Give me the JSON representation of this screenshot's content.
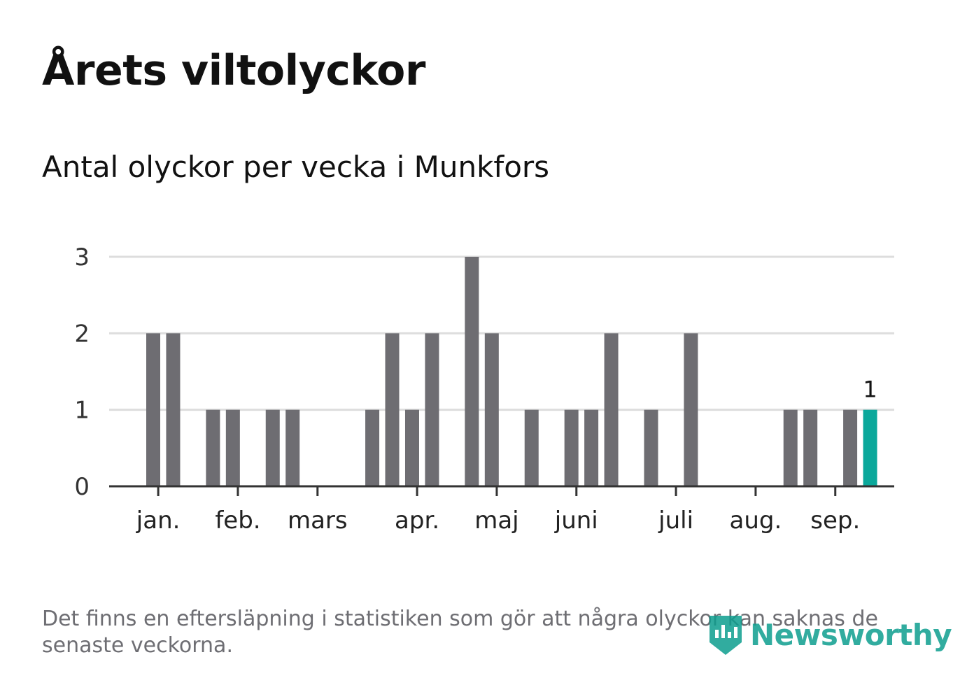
{
  "title": "Årets viltolyckor",
  "subtitle": "Antal olyckor per vecka i Munkfors",
  "footnote": "Det finns en eftersläpning i statistiken som gör att några olyckor kan saknas de senaste veckorna.",
  "brand": {
    "name": "Newsworthy",
    "icon": "newsworthy-logo-icon",
    "color": "#0e9e8f"
  },
  "colors": {
    "bar": "#6e6d72",
    "highlight": "#0ba89b",
    "grid": "#dddddd",
    "axis": "#333333"
  },
  "chart_data": {
    "type": "bar",
    "x_unit": "week",
    "weeks": [
      1,
      2,
      3,
      4,
      5,
      6,
      7,
      8,
      9,
      10,
      11,
      12,
      13,
      14,
      15,
      16,
      17,
      18,
      19,
      20,
      21,
      22,
      23,
      24,
      25,
      26,
      27,
      28,
      29,
      30,
      31,
      32,
      33,
      34,
      35,
      36,
      37,
      38,
      39
    ],
    "values": [
      0,
      0,
      2,
      2,
      0,
      1,
      1,
      0,
      1,
      1,
      0,
      0,
      0,
      1,
      2,
      1,
      2,
      0,
      3,
      2,
      0,
      1,
      0,
      1,
      1,
      2,
      0,
      1,
      0,
      2,
      0,
      0,
      0,
      0,
      1,
      1,
      0,
      1,
      1
    ],
    "highlight_index": 38,
    "highlight_label": "1",
    "y_ticks": [
      "0",
      "1",
      "2",
      "3"
    ],
    "ylim": [
      0,
      3
    ],
    "x_ticks": [
      {
        "label": "jan.",
        "week": 3.25
      },
      {
        "label": "feb.",
        "week": 7.25
      },
      {
        "label": "mars",
        "week": 11.25
      },
      {
        "label": "apr.",
        "week": 16.25
      },
      {
        "label": "maj",
        "week": 20.25
      },
      {
        "label": "juni",
        "week": 24.25
      },
      {
        "label": "juli",
        "week": 29.25
      },
      {
        "label": "aug.",
        "week": 33.25
      },
      {
        "label": "sep.",
        "week": 37.25
      }
    ],
    "grid": true,
    "legend": "none"
  }
}
